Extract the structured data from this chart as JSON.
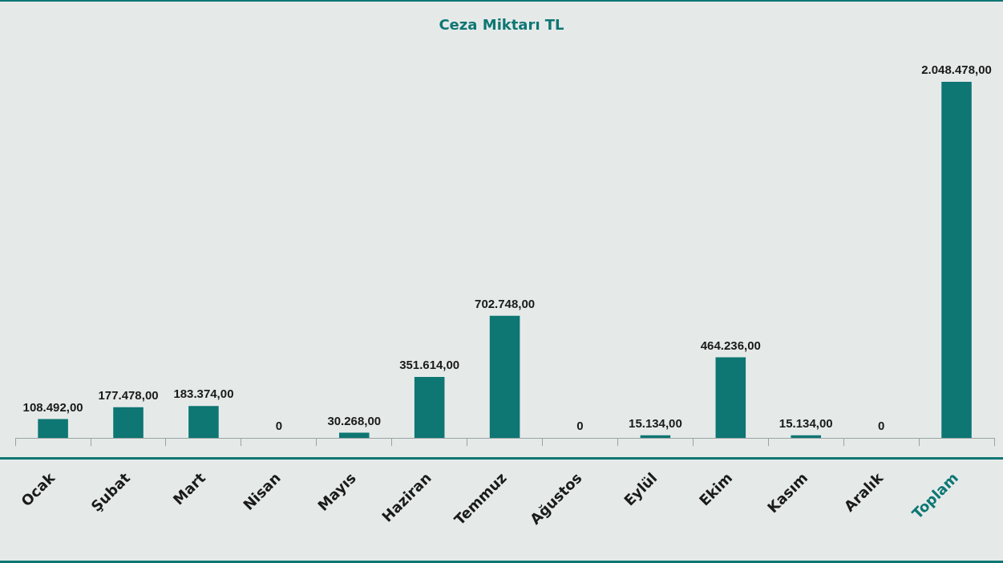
{
  "chart_data": {
    "type": "bar",
    "title": "Ceza Miktarı TL",
    "categories": [
      "Ocak",
      "Şubat",
      "Mart",
      "Nisan",
      "Mayıs",
      "Haziran",
      "Temmuz",
      "Ağustos",
      "Eylül",
      "Ekim",
      "Kasım",
      "Aralık",
      "Toplam"
    ],
    "values": [
      108492,
      177478,
      183374,
      0,
      30268,
      351614,
      702748,
      0,
      15134,
      464236,
      15134,
      0,
      2048478
    ],
    "value_labels": [
      "108.492,00",
      "177.478,00",
      "183.374,00",
      "0",
      "30.268,00",
      "351.614,00",
      "702.748,00",
      "0",
      "15.134,00",
      "464.236,00",
      "15.134,00",
      "0",
      "2.048.478,00"
    ],
    "color": "#0e7673",
    "grid": false,
    "legend": false
  }
}
